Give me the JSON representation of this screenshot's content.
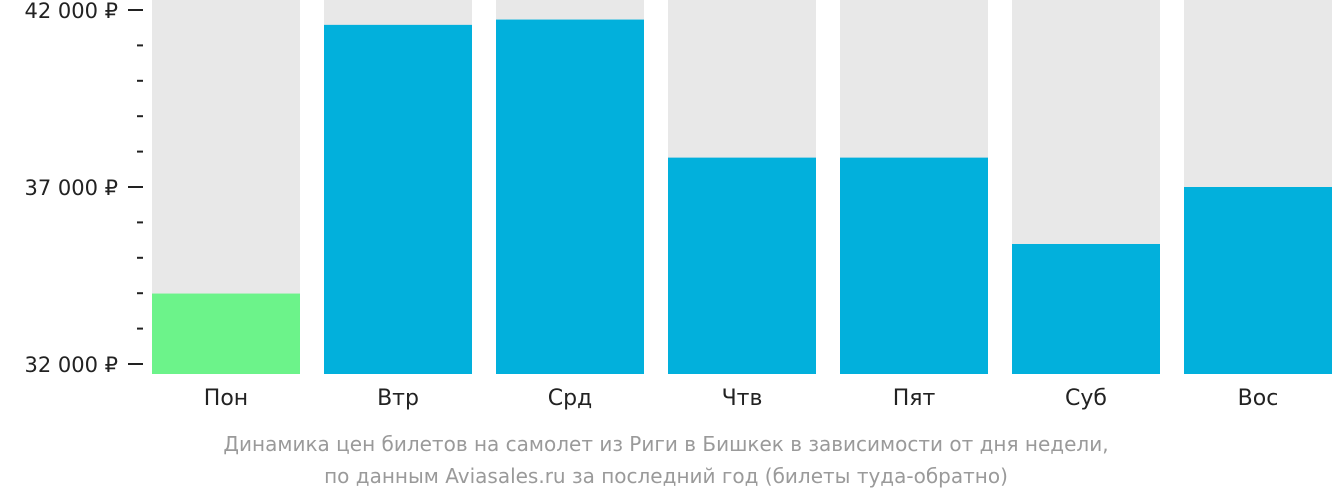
{
  "chart_data": {
    "type": "bar",
    "categories": [
      "Пон",
      "Втр",
      "Срд",
      "Чтв",
      "Пят",
      "Суб",
      "Вос"
    ],
    "values": [
      33990,
      41580,
      41730,
      37830,
      37830,
      35390,
      37000
    ],
    "ylim": [
      32000,
      42600
    ],
    "yticks": [
      {
        "value": 42000,
        "label": "42 000 ₽"
      },
      {
        "value": 37000,
        "label": "37 000 ₽"
      },
      {
        "value": 32000,
        "label": "32 000 ₽"
      }
    ],
    "minor_ticks": [
      41000,
      40000,
      39000,
      38000,
      36000,
      35000,
      34000,
      33000
    ],
    "highlight_index": 0,
    "colors": {
      "bar": "#02b0dc",
      "highlight": "#6cf38a",
      "track": "#e8e8e8",
      "axis": "#222222"
    }
  },
  "caption": {
    "line1": "Динамика цен билетов на самолет из Риги в Бишкек в зависимости от дня недели,",
    "line2": "по данным Aviasales.ru за последний год (билеты туда-обратно)"
  }
}
